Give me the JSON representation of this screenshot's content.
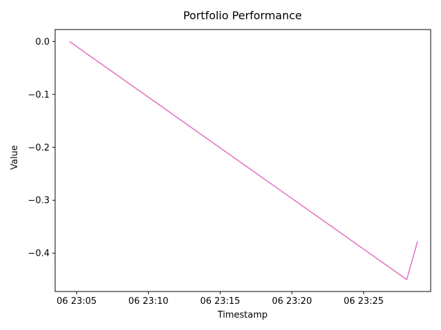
{
  "chart_data": {
    "type": "line",
    "title": "Portfolio Performance",
    "xlabel": "Timestamp",
    "ylabel": "Value",
    "x_tick_labels": [
      "06 23:05",
      "06 23:10",
      "06 23:15",
      "06 23:20",
      "06 23:25"
    ],
    "y_tick_labels": [
      "0.0",
      "−0.1",
      "−0.2",
      "−0.3",
      "−0.4"
    ],
    "y_ticks": [
      0.0,
      -0.1,
      -0.2,
      -0.3,
      -0.4
    ],
    "x_ticks": [
      "23:05",
      "23:10",
      "23:15",
      "23:20",
      "23:25"
    ],
    "xlim": [
      "23:03:30",
      "23:29:40"
    ],
    "ylim": [
      -0.4725,
      0.0225
    ],
    "grid": false,
    "series": [
      {
        "color": "#e377c2",
        "x": [
          "23:04:30",
          "23:28:00",
          "23:28:45"
        ],
        "y": [
          0.0,
          -0.45,
          -0.378
        ]
      }
    ]
  }
}
